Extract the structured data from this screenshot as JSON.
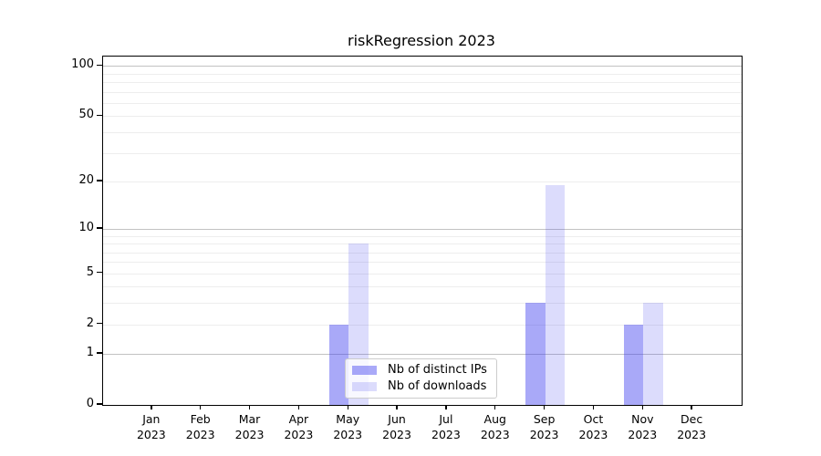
{
  "title": "riskRegression 2023",
  "chart_data": {
    "type": "bar",
    "title": "riskRegression 2023",
    "scale": "log1p",
    "categories": [
      "Jan",
      "Feb",
      "Mar",
      "Apr",
      "May",
      "Jun",
      "Jul",
      "Aug",
      "Sep",
      "Oct",
      "Nov",
      "Dec"
    ],
    "year": "2023",
    "series": [
      {
        "name": "Nb of distinct IPs",
        "color": "rgba(60,60,240,0.44)",
        "values": [
          0,
          0,
          0,
          0,
          2,
          0,
          0,
          0,
          3,
          0,
          2,
          0
        ]
      },
      {
        "name": "Nb of downloads",
        "color": "rgba(60,60,240,0.18)",
        "values": [
          0,
          0,
          0,
          0,
          8,
          0,
          0,
          0,
          19,
          0,
          3,
          0
        ]
      }
    ],
    "yticks": [
      0,
      1,
      2,
      5,
      10,
      20,
      50,
      100
    ],
    "major_gridlines": [
      1,
      10,
      100
    ],
    "minor_gridlines": [
      2,
      3,
      4,
      5,
      6,
      7,
      8,
      9,
      20,
      30,
      40,
      50,
      60,
      70,
      80,
      90
    ],
    "ylim": [
      0,
      114
    ],
    "xlabel": "",
    "ylabel": "",
    "grid": true,
    "legend_position": "bottom-center",
    "colors": {
      "grid_major": "#c2c2c2",
      "grid_minor": "#ededed",
      "spine": "#000000",
      "bar_ips_rendered": "#aaaaf8",
      "bar_downloads_rendered": "#dcdcfa"
    }
  }
}
